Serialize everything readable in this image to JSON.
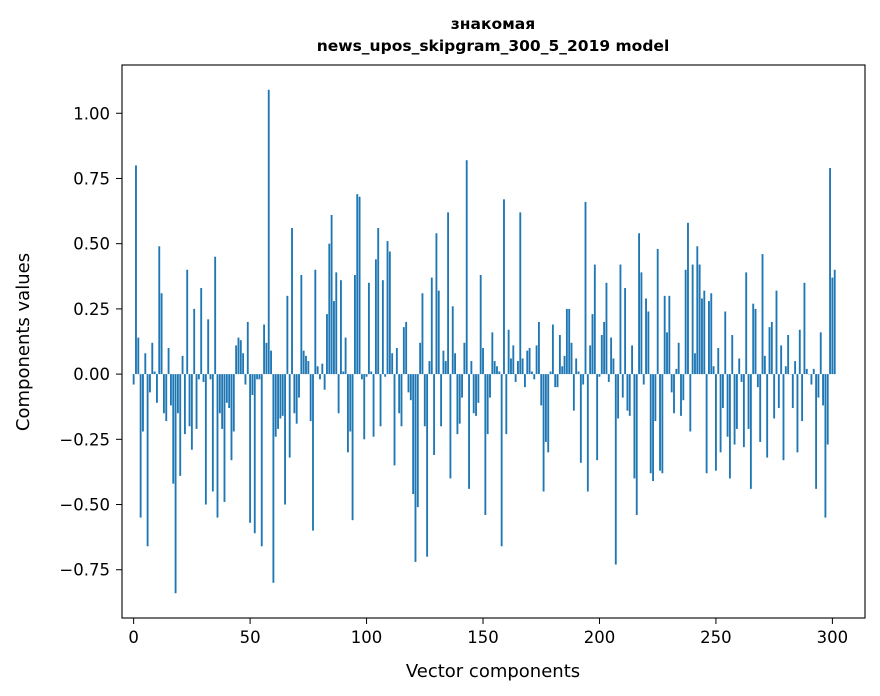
{
  "chart_data": {
    "type": "bar",
    "title_line1": "знакомая",
    "title_line2": "news_upos_skipgram_300_5_2019 model",
    "xlabel": "Vector components",
    "ylabel": "Components values",
    "xlim": [
      -5,
      314
    ],
    "ylim": [
      -0.935,
      1.185
    ],
    "x_ticks": [
      0,
      50,
      100,
      150,
      200,
      250,
      300
    ],
    "x_tick_labels": [
      "0",
      "50",
      "100",
      "150",
      "200",
      "250",
      "300"
    ],
    "y_ticks": [
      -0.75,
      -0.5,
      -0.25,
      0.0,
      0.25,
      0.5,
      0.75,
      1.0
    ],
    "y_tick_labels": [
      "−0.75",
      "−0.50",
      "−0.25",
      "0.00",
      "0.25",
      "0.50",
      "0.75",
      "1.00"
    ],
    "bar_color": "#1f77b4",
    "grid": false,
    "values": [
      -0.04,
      0.8,
      0.14,
      -0.55,
      -0.22,
      0.08,
      -0.66,
      -0.07,
      0.12,
      0.01,
      -0.11,
      0.49,
      0.31,
      -0.15,
      -0.18,
      0.1,
      -0.12,
      -0.42,
      -0.84,
      -0.15,
      -0.39,
      0.07,
      -0.23,
      0.4,
      -0.2,
      -0.29,
      0.25,
      -0.21,
      -0.02,
      0.33,
      -0.03,
      -0.5,
      0.21,
      -0.02,
      -0.45,
      0.45,
      -0.55,
      -0.15,
      -0.21,
      -0.49,
      -0.11,
      -0.13,
      -0.33,
      -0.22,
      0.11,
      0.14,
      0.13,
      0.08,
      -0.04,
      0.2,
      -0.57,
      -0.08,
      -0.61,
      -0.02,
      -0.02,
      -0.66,
      0.19,
      0.12,
      1.09,
      0.09,
      -0.8,
      -0.24,
      -0.21,
      -0.17,
      -0.16,
      -0.5,
      0.3,
      -0.32,
      0.56,
      -0.15,
      -0.19,
      -0.09,
      0.38,
      0.09,
      0.07,
      0.05,
      -0.18,
      -0.6,
      0.4,
      0.03,
      -0.02,
      0.04,
      -0.06,
      0.23,
      0.5,
      0.61,
      0.28,
      0.39,
      -0.15,
      0.36,
      0.01,
      0.14,
      -0.3,
      -0.22,
      -0.56,
      0.38,
      0.69,
      0.68,
      -0.02,
      -0.25,
      -0.01,
      0.35,
      0.01,
      -0.24,
      0.44,
      0.56,
      -0.2,
      0.36,
      -0.01,
      0.51,
      0.47,
      0.08,
      -0.35,
      0.1,
      -0.15,
      -0.2,
      0.18,
      0.2,
      -0.07,
      -0.1,
      -0.46,
      -0.72,
      -0.51,
      0.12,
      0.31,
      -0.2,
      -0.7,
      0.05,
      0.37,
      -0.31,
      0.54,
      0.32,
      -0.2,
      0.09,
      0.05,
      0.62,
      -0.4,
      0.26,
      0.08,
      -0.23,
      -0.19,
      -0.09,
      0.12,
      0.82,
      -0.44,
      0.05,
      -0.15,
      -0.16,
      -0.11,
      0.38,
      0.1,
      -0.54,
      -0.23,
      -0.09,
      0.16,
      0.05,
      0.03,
      0.01,
      -0.66,
      0.67,
      -0.23,
      0.17,
      0.06,
      0.11,
      -0.03,
      0.05,
      0.62,
      0.06,
      -0.05,
      0.09,
      0.1,
      0.01,
      -0.02,
      0.11,
      0.2,
      -0.12,
      -0.45,
      -0.26,
      -0.3,
      0.01,
      0.19,
      -0.05,
      -0.05,
      0.15,
      0.03,
      0.07,
      0.25,
      0.25,
      0.12,
      -0.14,
      0.06,
      0.01,
      -0.34,
      -0.04,
      0.66,
      -0.45,
      0.11,
      0.23,
      0.42,
      -0.33,
      -0.01,
      0.15,
      0.2,
      0.35,
      -0.03,
      0.14,
      0.06,
      -0.73,
      -0.17,
      0.42,
      -0.09,
      0.33,
      -0.14,
      -0.16,
      0.11,
      -0.4,
      -0.54,
      0.54,
      0.39,
      -0.04,
      0.29,
      0.24,
      -0.38,
      -0.41,
      -0.18,
      0.48,
      -0.37,
      -0.38,
      0.3,
      0.16,
      0.3,
      -0.07,
      -0.15,
      0.02,
      0.12,
      -0.16,
      -0.1,
      0.4,
      0.58,
      -0.22,
      0.42,
      0.08,
      0.49,
      0.42,
      0.29,
      0.32,
      -0.38,
      0.28,
      0.31,
      0.03,
      -0.37,
      0.1,
      -0.3,
      -0.13,
      0.24,
      -0.24,
      -0.4,
      0.15,
      -0.27,
      -0.21,
      0.06,
      -0.03,
      -0.28,
      0.39,
      -0.21,
      -0.44,
      0.27,
      0.25,
      -0.05,
      -0.26,
      0.46,
      0.07,
      -0.32,
      0.18,
      0.2,
      -0.17,
      0.32,
      -0.13,
      0.11,
      -0.33,
      0.03,
      0.15,
      0.0,
      -0.13,
      0.05,
      -0.3,
      0.17,
      -0.18,
      0.35,
      0.02,
      0.0,
      -0.04,
      0.02,
      -0.44,
      -0.09,
      0.16,
      -0.12,
      -0.55,
      -0.27,
      0.79,
      0.37,
      0.4
    ]
  }
}
